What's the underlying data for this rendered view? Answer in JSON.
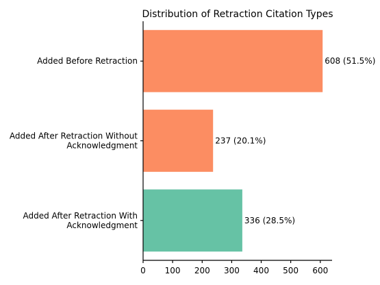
{
  "chart_data": {
    "type": "bar",
    "orientation": "horizontal",
    "title": "Distribution of Retraction Citation Types",
    "xlabel": "",
    "ylabel": "",
    "categories": [
      [
        "Added Before Retraction"
      ],
      [
        "Added After Retraction Without",
        "Acknowledgment"
      ],
      [
        "Added After Retraction With",
        "Acknowledgment"
      ]
    ],
    "values": [
      608,
      237,
      336
    ],
    "value_labels": [
      "608 (51.5%)",
      "237 (20.1%)",
      "336 (28.5%)"
    ],
    "bar_colors": [
      "#fc8d62",
      "#fc8d62",
      "#66c2a5"
    ],
    "xlim": [
      0,
      640
    ],
    "xticks": [
      0,
      100,
      200,
      300,
      400,
      500,
      600
    ],
    "grid": false,
    "legend": "none"
  }
}
